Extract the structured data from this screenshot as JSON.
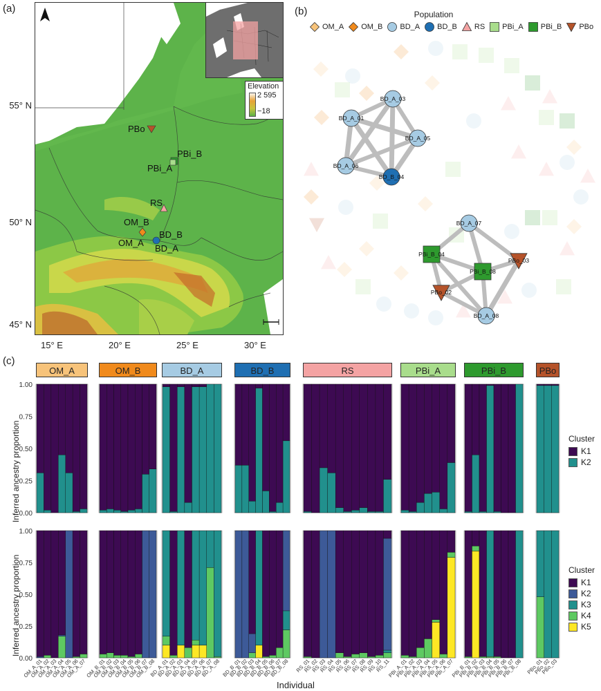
{
  "panels": {
    "a": "(a)",
    "b": "(b)",
    "c": "(c)"
  },
  "map": {
    "lat_labels": [
      "55° N",
      "50° N",
      "45° N"
    ],
    "lon_labels": [
      "15° E",
      "20° E",
      "25° E",
      "30° E"
    ],
    "elevation_title": "Elevation",
    "elevation_max": "2 595",
    "elevation_min": "−18",
    "sites": [
      {
        "label": "PBo",
        "color": "#b5532a",
        "shape": "triangle-down"
      },
      {
        "label": "PBi_B",
        "color": "#2e9a2e",
        "shape": "square"
      },
      {
        "label": "PBi_A",
        "color": "#a9dd8c",
        "shape": "square"
      },
      {
        "label": "RS",
        "color": "#f4a3a3",
        "shape": "triangle"
      },
      {
        "label": "OM_B",
        "color": "#f08a1c",
        "shape": "diamond"
      },
      {
        "label": "OM_A",
        "color": "#f7c37a",
        "shape": "diamond"
      },
      {
        "label": "BD_B",
        "color": "#1f6fb2",
        "shape": "circle"
      },
      {
        "label": "BD_A",
        "color": "#a6cbe3",
        "shape": "circle"
      }
    ]
  },
  "network": {
    "legend_title": "Population",
    "legend": [
      {
        "label": "OM_A",
        "color": "#f7c37a",
        "shape": "diamond"
      },
      {
        "label": "OM_B",
        "color": "#f08a1c",
        "shape": "diamond"
      },
      {
        "label": "BD_A",
        "color": "#a6cbe3",
        "shape": "circle"
      },
      {
        "label": "BD_B",
        "color": "#1f6fb2",
        "shape": "circle"
      },
      {
        "label": "RS",
        "color": "#f4a3a3",
        "shape": "triangle"
      },
      {
        "label": "PBi_A",
        "color": "#a9dd8c",
        "shape": "square"
      },
      {
        "label": "PBi_B",
        "color": "#2e9a2e",
        "shape": "square"
      },
      {
        "label": "PBo",
        "color": "#b5532a",
        "shape": "triangle-down"
      }
    ],
    "cluster1": [
      {
        "id": "BD_A_03",
        "pop": "BD_A"
      },
      {
        "id": "BD_A_01",
        "pop": "BD_A"
      },
      {
        "id": "BD_A_05",
        "pop": "BD_A"
      },
      {
        "id": "BD_A_06",
        "pop": "BD_A"
      },
      {
        "id": "BD_B_04",
        "pop": "BD_B"
      }
    ],
    "cluster2": [
      {
        "id": "BD_A_07",
        "pop": "BD_A"
      },
      {
        "id": "PBi_B_04",
        "pop": "PBi_B"
      },
      {
        "id": "PBi_B_08",
        "pop": "PBi_B"
      },
      {
        "id": "PBo_03",
        "pop": "PBo"
      },
      {
        "id": "PBo_02",
        "pop": "PBo"
      },
      {
        "id": "BD_A_08",
        "pop": "BD_A"
      }
    ]
  },
  "chart_data": {
    "type": "bar",
    "stacked": true,
    "xlabel": "Individual",
    "ylabel": "Inferred ancestry proportion",
    "ylim": [
      0,
      1
    ],
    "yticks": [
      "0.00",
      "0.25",
      "0.50",
      "0.75",
      "1.00"
    ],
    "legend_title": "Cluster",
    "colors": {
      "K1": "#3d0a52",
      "K2": "#3d5a98",
      "K3": "#21908d",
      "K4": "#5ec962",
      "K5": "#fde725"
    },
    "colors_k2": {
      "K1": "#3d0a52",
      "K2": "#21908d"
    },
    "populations": [
      {
        "name": "OM_A",
        "color": "#f7c37a",
        "individuals": [
          "OM_A_01",
          "OM_A_02",
          "OM_A_03",
          "OM_A_04",
          "OM_A_05",
          "OM_A_06",
          "OM_A_07"
        ],
        "k2": [
          0.31,
          0.02,
          0.0,
          0.45,
          0.31,
          0.01,
          0.03
        ],
        "k5": [
          [
            0.99,
            0.01,
            0,
            0,
            0
          ],
          [
            0.98,
            0,
            0,
            0.02,
            0
          ],
          [
            1,
            0,
            0,
            0,
            0
          ],
          [
            0.82,
            0.01,
            0,
            0.17,
            0
          ],
          [
            0,
            1,
            0,
            0,
            0
          ],
          [
            0.99,
            0,
            0,
            0.01,
            0
          ],
          [
            0.97,
            0,
            0,
            0.03,
            0
          ]
        ]
      },
      {
        "name": "OM_B",
        "color": "#f08a1c",
        "individuals": [
          "OM_B_01",
          "OM_B_02",
          "OM_B_03",
          "OM_B_04",
          "OM_B_05",
          "OM_B_06",
          "OM_B_07",
          "OM_B_08"
        ],
        "k2": [
          0.02,
          0.03,
          0.02,
          0.01,
          0.02,
          0.03,
          0.3,
          0.34
        ],
        "k5": [
          [
            0.97,
            0,
            0,
            0.03,
            0
          ],
          [
            0.96,
            0,
            0,
            0.04,
            0
          ],
          [
            0.98,
            0,
            0,
            0.02,
            0
          ],
          [
            0.98,
            0,
            0,
            0.02,
            0
          ],
          [
            0.99,
            0,
            0,
            0.01,
            0
          ],
          [
            0.97,
            0,
            0,
            0.03,
            0
          ],
          [
            0,
            1,
            0,
            0,
            0
          ],
          [
            0,
            1,
            0,
            0,
            0
          ]
        ]
      },
      {
        "name": "BD_A",
        "color": "#a6cbe3",
        "individuals": [
          "BD_A_01",
          "BD_A_02",
          "BD_A_03",
          "BD_A_04",
          "BD_A_05",
          "BD_A_06",
          "BD_A_07",
          "BD_A_08"
        ],
        "k2": [
          0.98,
          0.01,
          0.98,
          0.08,
          0.98,
          0.98,
          1.0,
          1.0
        ],
        "k5": [
          [
            0,
            0,
            0.83,
            0.07,
            0.1
          ],
          [
            0.98,
            0,
            0,
            0.02,
            0
          ],
          [
            0,
            0,
            0.9,
            0,
            0.1
          ],
          [
            0.92,
            0,
            0,
            0.08,
            0
          ],
          [
            0,
            0,
            0.86,
            0.04,
            0.1
          ],
          [
            0,
            0,
            0.9,
            0,
            0.1
          ],
          [
            0,
            0,
            0.29,
            0.71,
            0
          ],
          [
            0,
            0,
            0.99,
            0.01,
            0
          ]
        ]
      },
      {
        "name": "BD_B",
        "color": "#1f6fb2",
        "individuals": [
          "BD_B_01",
          "BD_B_02",
          "BD_B_03",
          "BD_B_04",
          "BD_B_05",
          "BD_B_06",
          "BD_B_07",
          "BD_B_08"
        ],
        "k2": [
          0.37,
          0.37,
          0.09,
          0.97,
          0.17,
          0.01,
          0.08,
          0.56
        ],
        "k5": [
          [
            0,
            1,
            0,
            0,
            0
          ],
          [
            0,
            1,
            0,
            0,
            0
          ],
          [
            0.81,
            0.15,
            0,
            0.04,
            0
          ],
          [
            0,
            0,
            0.9,
            0,
            0.1
          ],
          [
            0.99,
            0,
            0,
            0.01,
            0
          ],
          [
            0.98,
            0,
            0,
            0.02,
            0
          ],
          [
            0.92,
            0,
            0,
            0.08,
            0
          ],
          [
            0,
            0.63,
            0.15,
            0.22,
            0
          ]
        ]
      },
      {
        "name": "RS",
        "color": "#f4a3a3",
        "individuals": [
          "RS_01",
          "RS_02",
          "RS_03",
          "RS_04",
          "RS_05",
          "RS_06",
          "RS_07",
          "RS_08",
          "RS_09",
          "RS_10",
          "RS_11"
        ],
        "k2": [
          0.01,
          0.0,
          0.35,
          0.31,
          0.04,
          0.01,
          0.02,
          0.04,
          0.01,
          0.01,
          0.26
        ],
        "k5": [
          [
            0.99,
            0,
            0,
            0.01,
            0
          ],
          [
            1,
            0,
            0,
            0,
            0
          ],
          [
            0,
            1,
            0,
            0,
            0
          ],
          [
            0,
            1,
            0,
            0,
            0
          ],
          [
            0.96,
            0,
            0,
            0.04,
            0
          ],
          [
            0.99,
            0,
            0,
            0.01,
            0
          ],
          [
            0.97,
            0,
            0,
            0.03,
            0
          ],
          [
            0.96,
            0,
            0,
            0.04,
            0
          ],
          [
            0.99,
            0,
            0,
            0.01,
            0
          ],
          [
            0.98,
            0,
            0,
            0.02,
            0
          ],
          [
            0.06,
            0.88,
            0.02,
            0.04,
            0
          ]
        ]
      },
      {
        "name": "PBi_A",
        "color": "#a9dd8c",
        "individuals": [
          "PBi_A_01",
          "PBi_A_02",
          "PBi_A_03",
          "PBi_A_04",
          "PBi_A_05",
          "PBi_A_06",
          "PBi_A_07"
        ],
        "k2": [
          0.02,
          0.01,
          0.08,
          0.15,
          0.16,
          0.03,
          0.39
        ],
        "k5": [
          [
            0.98,
            0,
            0,
            0.02,
            0
          ],
          [
            0.99,
            0,
            0,
            0.01,
            0
          ],
          [
            0.92,
            0,
            0,
            0.08,
            0
          ],
          [
            0.85,
            0,
            0,
            0.15,
            0
          ],
          [
            0.7,
            0,
            0,
            0.02,
            0.28
          ],
          [
            0.97,
            0,
            0,
            0.03,
            0
          ],
          [
            0.17,
            0,
            0,
            0.04,
            0.79
          ]
        ]
      },
      {
        "name": "PBi_B",
        "color": "#2e9a2e",
        "individuals": [
          "PBi_B_01",
          "PBi_B_02",
          "PBi_B_03",
          "PBi_B_04",
          "PBi_B_05",
          "PBi_B_06",
          "PBi_B_07",
          "PBi_B_08"
        ],
        "k2": [
          0.01,
          0.45,
          0.01,
          0.99,
          0.01,
          0.0,
          0.0,
          1.0
        ],
        "k5": [
          [
            0.99,
            0,
            0,
            0.01,
            0
          ],
          [
            0.12,
            0,
            0,
            0.04,
            0.84
          ],
          [
            0.99,
            0,
            0,
            0.01,
            0
          ],
          [
            0,
            0,
            0.99,
            0.01,
            0
          ],
          [
            0.99,
            0,
            0,
            0.01,
            0
          ],
          [
            1,
            0,
            0,
            0,
            0
          ],
          [
            1,
            0,
            0,
            0,
            0
          ],
          [
            0,
            0,
            1,
            0,
            0
          ]
        ]
      },
      {
        "name": "PBo",
        "color": "#b5532a",
        "individuals": [
          "PBo_01",
          "PBo_02",
          "PBo_03"
        ],
        "k2": [
          0.99,
          0.99,
          0.99
        ],
        "k5": [
          [
            0,
            0,
            0.52,
            0.48,
            0
          ],
          [
            0,
            0,
            1,
            0,
            0
          ],
          [
            0,
            0,
            1,
            0,
            0
          ]
        ]
      }
    ]
  }
}
